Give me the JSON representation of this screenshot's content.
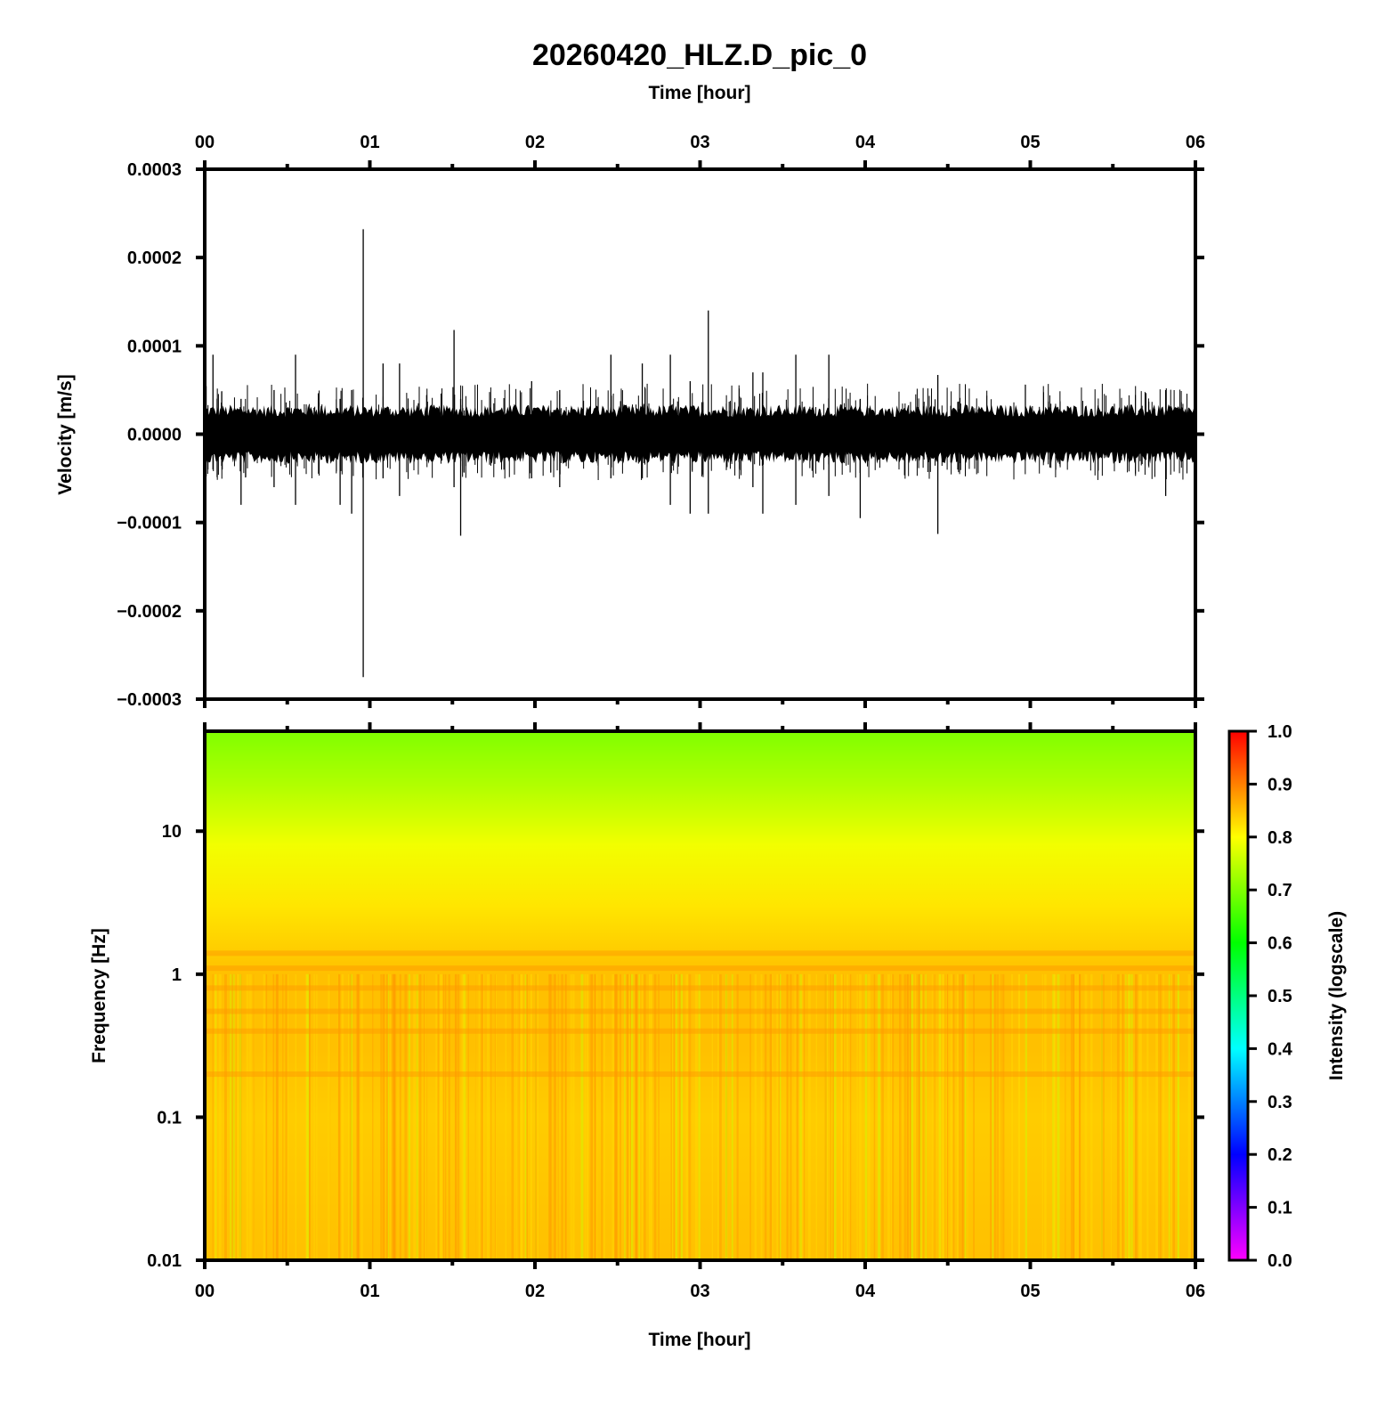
{
  "figure": {
    "title": "20260420_HLZ.D_pic_0"
  },
  "chart_data": [
    {
      "type": "line",
      "panel": "waveform",
      "title": "20260420_HLZ.D_pic_0",
      "xlabel": "Time [hour]",
      "ylabel": "Velocity [m/s]",
      "xlim": [
        0,
        6
      ],
      "ylim": [
        -0.0003,
        0.0003
      ],
      "x_ticks": [
        "00",
        "01",
        "02",
        "03",
        "04",
        "05",
        "06"
      ],
      "y_ticks": [
        "0.0003",
        "0.0002",
        "0.0001",
        "0.0000",
        "−0.0001",
        "−0.0002",
        "−0.0003"
      ],
      "y_tick_values": [
        0.0003,
        0.0002,
        0.0001,
        0.0,
        -0.0001,
        -0.0002,
        -0.0003
      ],
      "background_band": {
        "upper": 2.6e-05,
        "lower": -2.6e-05
      },
      "spikes": [
        {
          "x": 0.05,
          "max": 9e-05,
          "min": -4e-05
        },
        {
          "x": 0.22,
          "max": 4e-05,
          "min": -8e-05
        },
        {
          "x": 0.42,
          "max": 5e-05,
          "min": -6e-05
        },
        {
          "x": 0.55,
          "max": 9e-05,
          "min": -8e-05
        },
        {
          "x": 0.82,
          "max": 4e-05,
          "min": -8e-05
        },
        {
          "x": 0.89,
          "max": 5e-05,
          "min": -9e-05
        },
        {
          "x": 0.96,
          "max": 0.000232,
          "min": -0.000275
        },
        {
          "x": 1.08,
          "max": 8e-05,
          "min": -5e-05
        },
        {
          "x": 1.18,
          "max": 8e-05,
          "min": -7e-05
        },
        {
          "x": 1.51,
          "max": 0.000118,
          "min": -6e-05
        },
        {
          "x": 1.55,
          "max": 4e-05,
          "min": -0.000115
        },
        {
          "x": 1.98,
          "max": 6e-05,
          "min": -5e-05
        },
        {
          "x": 2.15,
          "max": 5e-05,
          "min": -6e-05
        },
        {
          "x": 2.46,
          "max": 9e-05,
          "min": -5e-05
        },
        {
          "x": 2.65,
          "max": 8e-05,
          "min": -5e-05
        },
        {
          "x": 2.82,
          "max": 9e-05,
          "min": -8e-05
        },
        {
          "x": 2.94,
          "max": 6e-05,
          "min": -9e-05
        },
        {
          "x": 3.05,
          "max": 0.00014,
          "min": -9e-05
        },
        {
          "x": 3.32,
          "max": 7e-05,
          "min": -6e-05
        },
        {
          "x": 3.38,
          "max": 7e-05,
          "min": -9e-05
        },
        {
          "x": 3.58,
          "max": 9e-05,
          "min": -8e-05
        },
        {
          "x": 3.78,
          "max": 9e-05,
          "min": -7e-05
        },
        {
          "x": 3.97,
          "max": 4e-05,
          "min": -9.5e-05
        },
        {
          "x": 4.44,
          "max": 6.7e-05,
          "min": -0.000113
        },
        {
          "x": 5.82,
          "max": 5e-05,
          "min": -7e-05
        }
      ]
    },
    {
      "type": "heatmap",
      "panel": "spectrogram",
      "xlabel": "Time [hour]",
      "ylabel": "Frequency [Hz]",
      "xlim": [
        0,
        6
      ],
      "ylim": [
        0.01,
        50
      ],
      "y_scale": "log",
      "x_ticks": [
        "00",
        "01",
        "02",
        "03",
        "04",
        "05",
        "06"
      ],
      "y_ticks": [
        "10",
        "1",
        "0.1",
        "0.01"
      ],
      "y_tick_values": [
        10,
        1,
        0.1,
        0.01
      ],
      "intensity_profile": [
        {
          "freq": 50,
          "intensity": 0.7
        },
        {
          "freq": 20,
          "intensity": 0.74
        },
        {
          "freq": 8,
          "intensity": 0.79
        },
        {
          "freq": 3,
          "intensity": 0.82
        },
        {
          "freq": 1,
          "intensity": 0.85
        },
        {
          "freq": 0.3,
          "intensity": 0.85
        },
        {
          "freq": 0.1,
          "intensity": 0.84
        },
        {
          "freq": 0.01,
          "intensity": 0.85
        }
      ],
      "colorbar": {
        "label": "Intensity (logscale)",
        "range": [
          0,
          1
        ],
        "ticks": [
          "1.0",
          "0.9",
          "0.8",
          "0.7",
          "0.6",
          "0.5",
          "0.4",
          "0.3",
          "0.2",
          "0.1",
          "0.0"
        ],
        "tick_values": [
          1.0,
          0.9,
          0.8,
          0.7,
          0.6,
          0.5,
          0.4,
          0.3,
          0.2,
          0.1,
          0.0
        ],
        "colors": [
          "#ff00ff",
          "#8000ff",
          "#0000ff",
          "#0080ff",
          "#00ffff",
          "#00ff80",
          "#00ff00",
          "#80ff00",
          "#ffff00",
          "#ff8000",
          "#ff0000"
        ]
      }
    }
  ]
}
